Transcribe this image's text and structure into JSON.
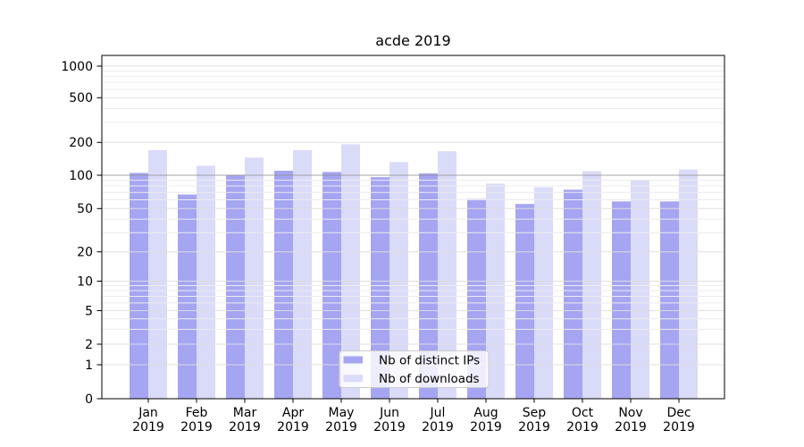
{
  "chart_data": {
    "type": "bar",
    "title": "acde 2019",
    "months": [
      "Jan",
      "Feb",
      "Mar",
      "Apr",
      "May",
      "Jun",
      "Jul",
      "Aug",
      "Sep",
      "Oct",
      "Nov",
      "Dec"
    ],
    "year": "2019",
    "series": [
      {
        "name": "Nb of distinct IPs",
        "color": "#a5a5f2",
        "values": [
          105,
          67,
          100,
          110,
          107,
          96,
          104,
          61,
          55,
          74,
          58,
          58
        ]
      },
      {
        "name": "Nb of downloads",
        "color": "#dadaf9",
        "values": [
          170,
          122,
          145,
          170,
          192,
          132,
          166,
          84,
          78,
          109,
          90,
          113
        ]
      }
    ],
    "y_axis": {
      "scale": "symlog",
      "tick_labels": [
        "0",
        "1",
        "2",
        "5",
        "10",
        "20",
        "50",
        "100",
        "200",
        "500",
        "1000"
      ],
      "ylim": [
        0,
        1000
      ]
    },
    "grid": true,
    "legend": {
      "position": "lower center"
    }
  }
}
